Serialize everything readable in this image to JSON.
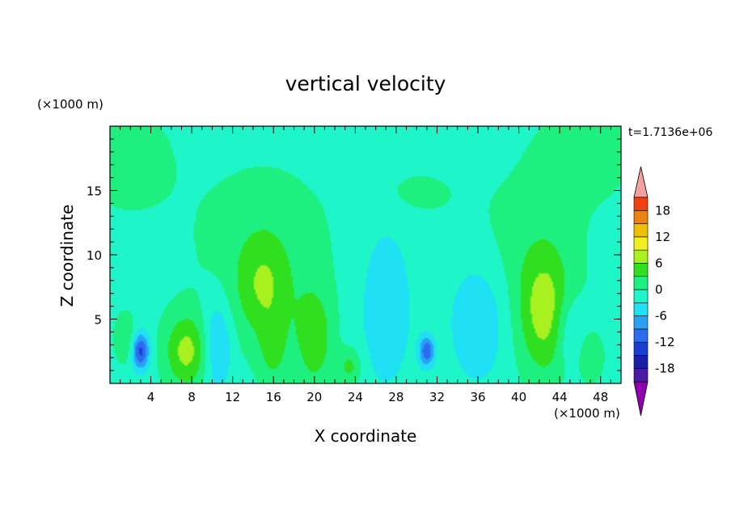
{
  "chart_data": {
    "type": "heatmap",
    "title": "vertical velocity",
    "xlabel": "X coordinate",
    "ylabel": "Z coordinate",
    "x_unit": "(×1000 m)",
    "y_unit": "(×1000 m)",
    "time_label": "t=1.7136e+06",
    "xlim": [
      0,
      50
    ],
    "ylim": [
      0,
      20
    ],
    "x_ticks": [
      4,
      8,
      12,
      16,
      20,
      24,
      28,
      32,
      36,
      40,
      44,
      48
    ],
    "y_ticks": [
      5,
      10,
      15
    ],
    "x_tick_labels": [
      "4",
      "8",
      "12",
      "16",
      "20",
      "24",
      "28",
      "32",
      "36",
      "40",
      "44",
      "48"
    ],
    "y_tick_labels": [
      "5",
      "10",
      "15"
    ],
    "colorbar": {
      "levels": [
        -21,
        -18,
        -15,
        -12,
        -9,
        -6,
        -3,
        0,
        3,
        6,
        9,
        12,
        15,
        18,
        21
      ],
      "colors": [
        "#8f00b0",
        "#4a1aa3",
        "#1b1fa6",
        "#1a3fd0",
        "#2a6cf0",
        "#2aa0f5",
        "#20e0f5",
        "#1ef5c8",
        "#1ef080",
        "#30e020",
        "#a8f020",
        "#f0f020",
        "#f0c000",
        "#f08010",
        "#f04010",
        "#e01818",
        "#f5a0a0"
      ],
      "labels": [
        "18",
        "12",
        "6",
        "0",
        "-6",
        "-12",
        "-18"
      ],
      "label_values": [
        18,
        12,
        6,
        0,
        -6,
        -12,
        -18
      ]
    },
    "background_value": -1,
    "features": [
      {
        "x": 1.5,
        "z": 17.5,
        "sx": 3.5,
        "sz": 3.2,
        "a": 2
      },
      {
        "x": 46.5,
        "z": 18.0,
        "sx": 3.8,
        "sz": 2.8,
        "a": 2
      },
      {
        "x": 29.5,
        "z": 14.8,
        "sx": 2.8,
        "sz": 1.3,
        "a": 1.8
      },
      {
        "x": 15.0,
        "z": 11.0,
        "sx": 5.5,
        "sz": 4.8,
        "a": 2
      },
      {
        "x": 40.5,
        "z": 10.5,
        "sx": 4.5,
        "sz": 4.2,
        "a": 2
      },
      {
        "x": 15.0,
        "z": 7.5,
        "sx": 2.0,
        "sz": 3.0,
        "a": 6
      },
      {
        "x": 16.0,
        "z": 2.5,
        "sx": 1.0,
        "sz": 2.0,
        "a": 4
      },
      {
        "x": 20.0,
        "z": 3.5,
        "sx": 1.3,
        "sz": 2.8,
        "a": 6
      },
      {
        "x": 7.5,
        "z": 2.5,
        "sx": 1.5,
        "sz": 2.0,
        "a": 8
      },
      {
        "x": 42.5,
        "z": 5.5,
        "sx": 1.8,
        "sz": 3.5,
        "a": 8
      },
      {
        "x": 23.5,
        "z": 1.3,
        "sx": 0.8,
        "sz": 1.0,
        "a": 5
      },
      {
        "x": 47.0,
        "z": 2.0,
        "sx": 0.8,
        "sz": 1.2,
        "a": 4
      },
      {
        "x": 1.5,
        "z": 3.5,
        "sx": 0.7,
        "sz": 1.3,
        "a": 4
      },
      {
        "x": 3.0,
        "z": 2.5,
        "sx": 0.6,
        "sz": 1.0,
        "a": -12
      },
      {
        "x": 10.5,
        "z": 3.0,
        "sx": 1.0,
        "sz": 2.5,
        "a": -6
      },
      {
        "x": 27.0,
        "z": 6.0,
        "sx": 2.0,
        "sz": 5.0,
        "a": -4
      },
      {
        "x": 31.0,
        "z": 2.5,
        "sx": 0.5,
        "sz": 0.8,
        "a": -10
      },
      {
        "x": 36.0,
        "z": 5.0,
        "sx": 2.0,
        "sz": 3.5,
        "a": -5
      },
      {
        "x": 45.0,
        "z": 4.0,
        "sx": 1.0,
        "sz": 2.0,
        "a": -4
      }
    ]
  }
}
